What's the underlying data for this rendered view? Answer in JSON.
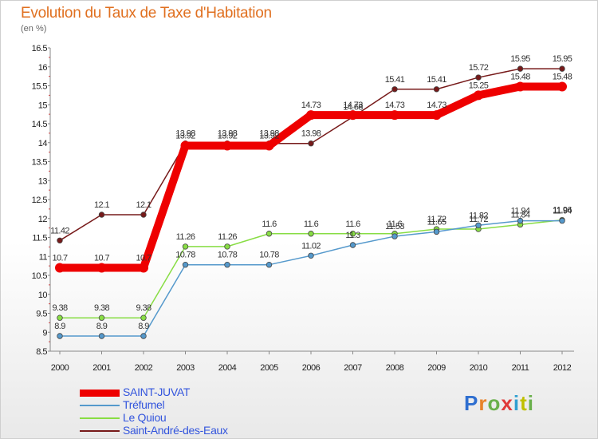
{
  "header": {
    "title": "Evolution du Taux de Taxe d'Habitation",
    "subtitle": "(en %)"
  },
  "logo": {
    "text": "Proxiti",
    "letter_colors": [
      "#2f6fd0",
      "#e8832a",
      "#6ab04c",
      "#e03a3a",
      "#2f9fd0",
      "#c0c000",
      "#6ab04c"
    ]
  },
  "chart_data": {
    "type": "line",
    "title": "Evolution du Taux de Taxe d'Habitation",
    "ylabel": "(en %)",
    "xlabel": "",
    "x": [
      "2000",
      "2001",
      "2002",
      "2003",
      "2004",
      "2005",
      "2006",
      "2007",
      "2008",
      "2009",
      "2010",
      "2011",
      "2012"
    ],
    "ylim": [
      8.5,
      16.5
    ],
    "yticks": [
      "8.5",
      "9",
      "9.5",
      "10",
      "10.5",
      "11",
      "11.5",
      "12",
      "12.5",
      "13",
      "13.5",
      "14",
      "14.5",
      "15",
      "15.5",
      "16",
      "16.5"
    ],
    "grid": false,
    "legend_position": "bottom-left",
    "series": [
      {
        "name": "SAINT-JUVAT",
        "color": "#ee0000",
        "values": [
          10.7,
          10.7,
          10.7,
          13.92,
          13.92,
          13.92,
          14.73,
          14.73,
          14.73,
          14.73,
          15.25,
          15.48,
          15.48
        ],
        "labels": [
          "10.7",
          "10.7",
          "10.7",
          "13.92",
          "13.92",
          "13.92",
          "14.73",
          "14.73",
          "14.73",
          "14.73",
          "15.25",
          "15.48",
          "15.48"
        ]
      },
      {
        "name": "Tréfumel",
        "color": "#5599cc",
        "values": [
          8.9,
          8.9,
          8.9,
          10.78,
          10.78,
          10.78,
          11.02,
          11.3,
          11.53,
          11.65,
          11.82,
          11.94,
          11.94
        ],
        "labels": [
          "8.9",
          "8.9",
          "8.9",
          "10.78",
          "10.78",
          "10.78",
          "11.02",
          "11.3",
          "11.53",
          "11.65",
          "11.82",
          "11.94",
          "11.94"
        ]
      },
      {
        "name": "Le Quiou",
        "color": "#88dd44",
        "values": [
          9.38,
          9.38,
          9.38,
          11.26,
          11.26,
          11.6,
          11.6,
          11.6,
          11.6,
          11.72,
          11.72,
          11.84,
          11.96
        ],
        "labels": [
          "9.38",
          "9.38",
          "9.38",
          "11.26",
          "11.26",
          "11.6",
          "11.6",
          "11.6",
          "11.6",
          "11.72",
          "11.72",
          "11.84",
          "11.96"
        ]
      },
      {
        "name": "Saint-André-des-Eaux",
        "color": "#771a1a",
        "values": [
          11.42,
          12.1,
          12.1,
          13.98,
          13.98,
          13.98,
          13.98,
          14.68,
          15.41,
          15.41,
          15.72,
          15.95,
          15.95
        ],
        "labels": [
          "11.42",
          "12.1",
          "12.1",
          "13.98",
          "13.98",
          "13.98",
          "13.98",
          "14.68",
          "15.41",
          "15.41",
          "15.72",
          "15.95",
          "15.95"
        ]
      }
    ]
  }
}
